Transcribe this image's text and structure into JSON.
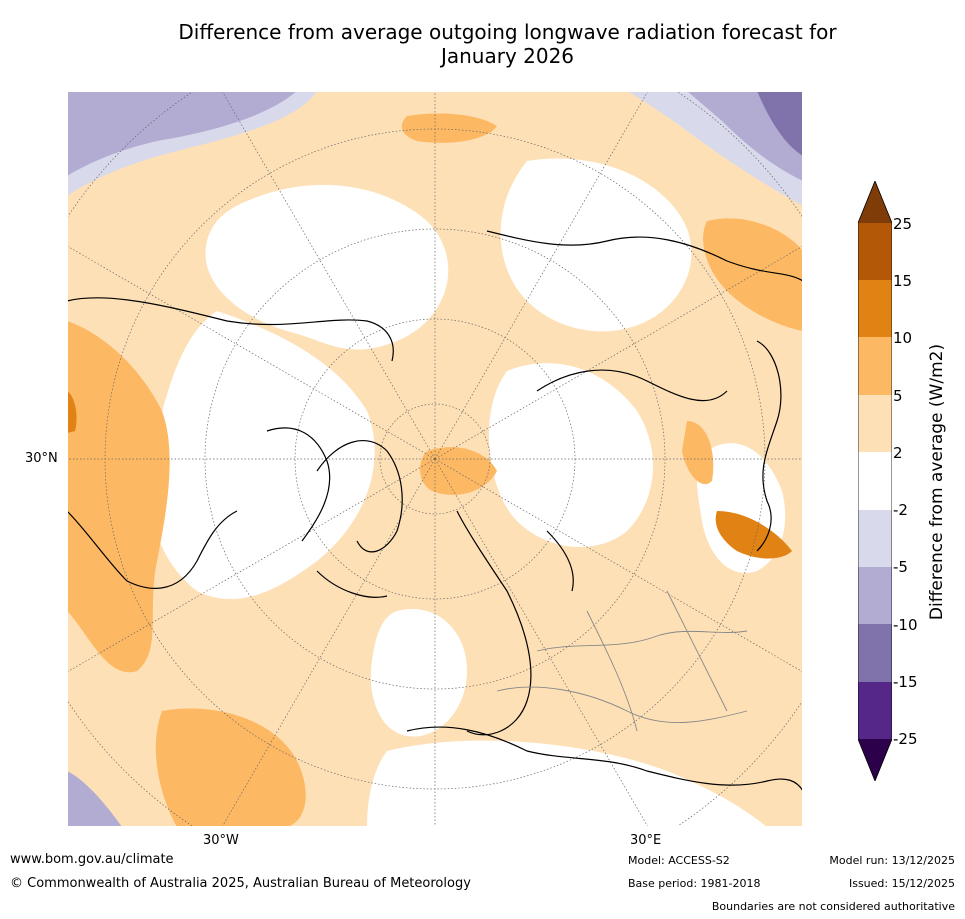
{
  "title_line1": "Difference from average outgoing longwave radiation forecast for",
  "title_line2": "January 2026",
  "map": {
    "lat_label": "30°N",
    "lon_labels": [
      "30°W",
      "30°E"
    ]
  },
  "colorbar": {
    "title": "Difference from average (W/m2)",
    "ticks": [
      "25",
      "15",
      "10",
      "5",
      "2",
      "-2",
      "-5",
      "-10",
      "-15",
      "-25"
    ],
    "colors": {
      "over": "#7f3b08",
      "b15_25": "#b35806",
      "b10_15": "#e08214",
      "b5_10": "#fdb863",
      "b2_5": "#fee0b6",
      "neutral": "#ffffff",
      "m2_m5": "#d8daeb",
      "m5_m10": "#b2abd2",
      "m10_m15": "#8073ac",
      "m15_m25": "#542788",
      "under": "#2d004b"
    }
  },
  "footer": {
    "website": "www.bom.gov.au/climate",
    "copyright": "© Commonwealth of Australia 2025, Australian Bureau of Meteorology",
    "model": "Model: ACCESS-S2",
    "base_period": "Base period: 1981-2018",
    "model_run": "Model run: 13/12/2025",
    "issued": "Issued: 15/12/2025",
    "disclaimer": "Boundaries are not considered authoritative"
  }
}
